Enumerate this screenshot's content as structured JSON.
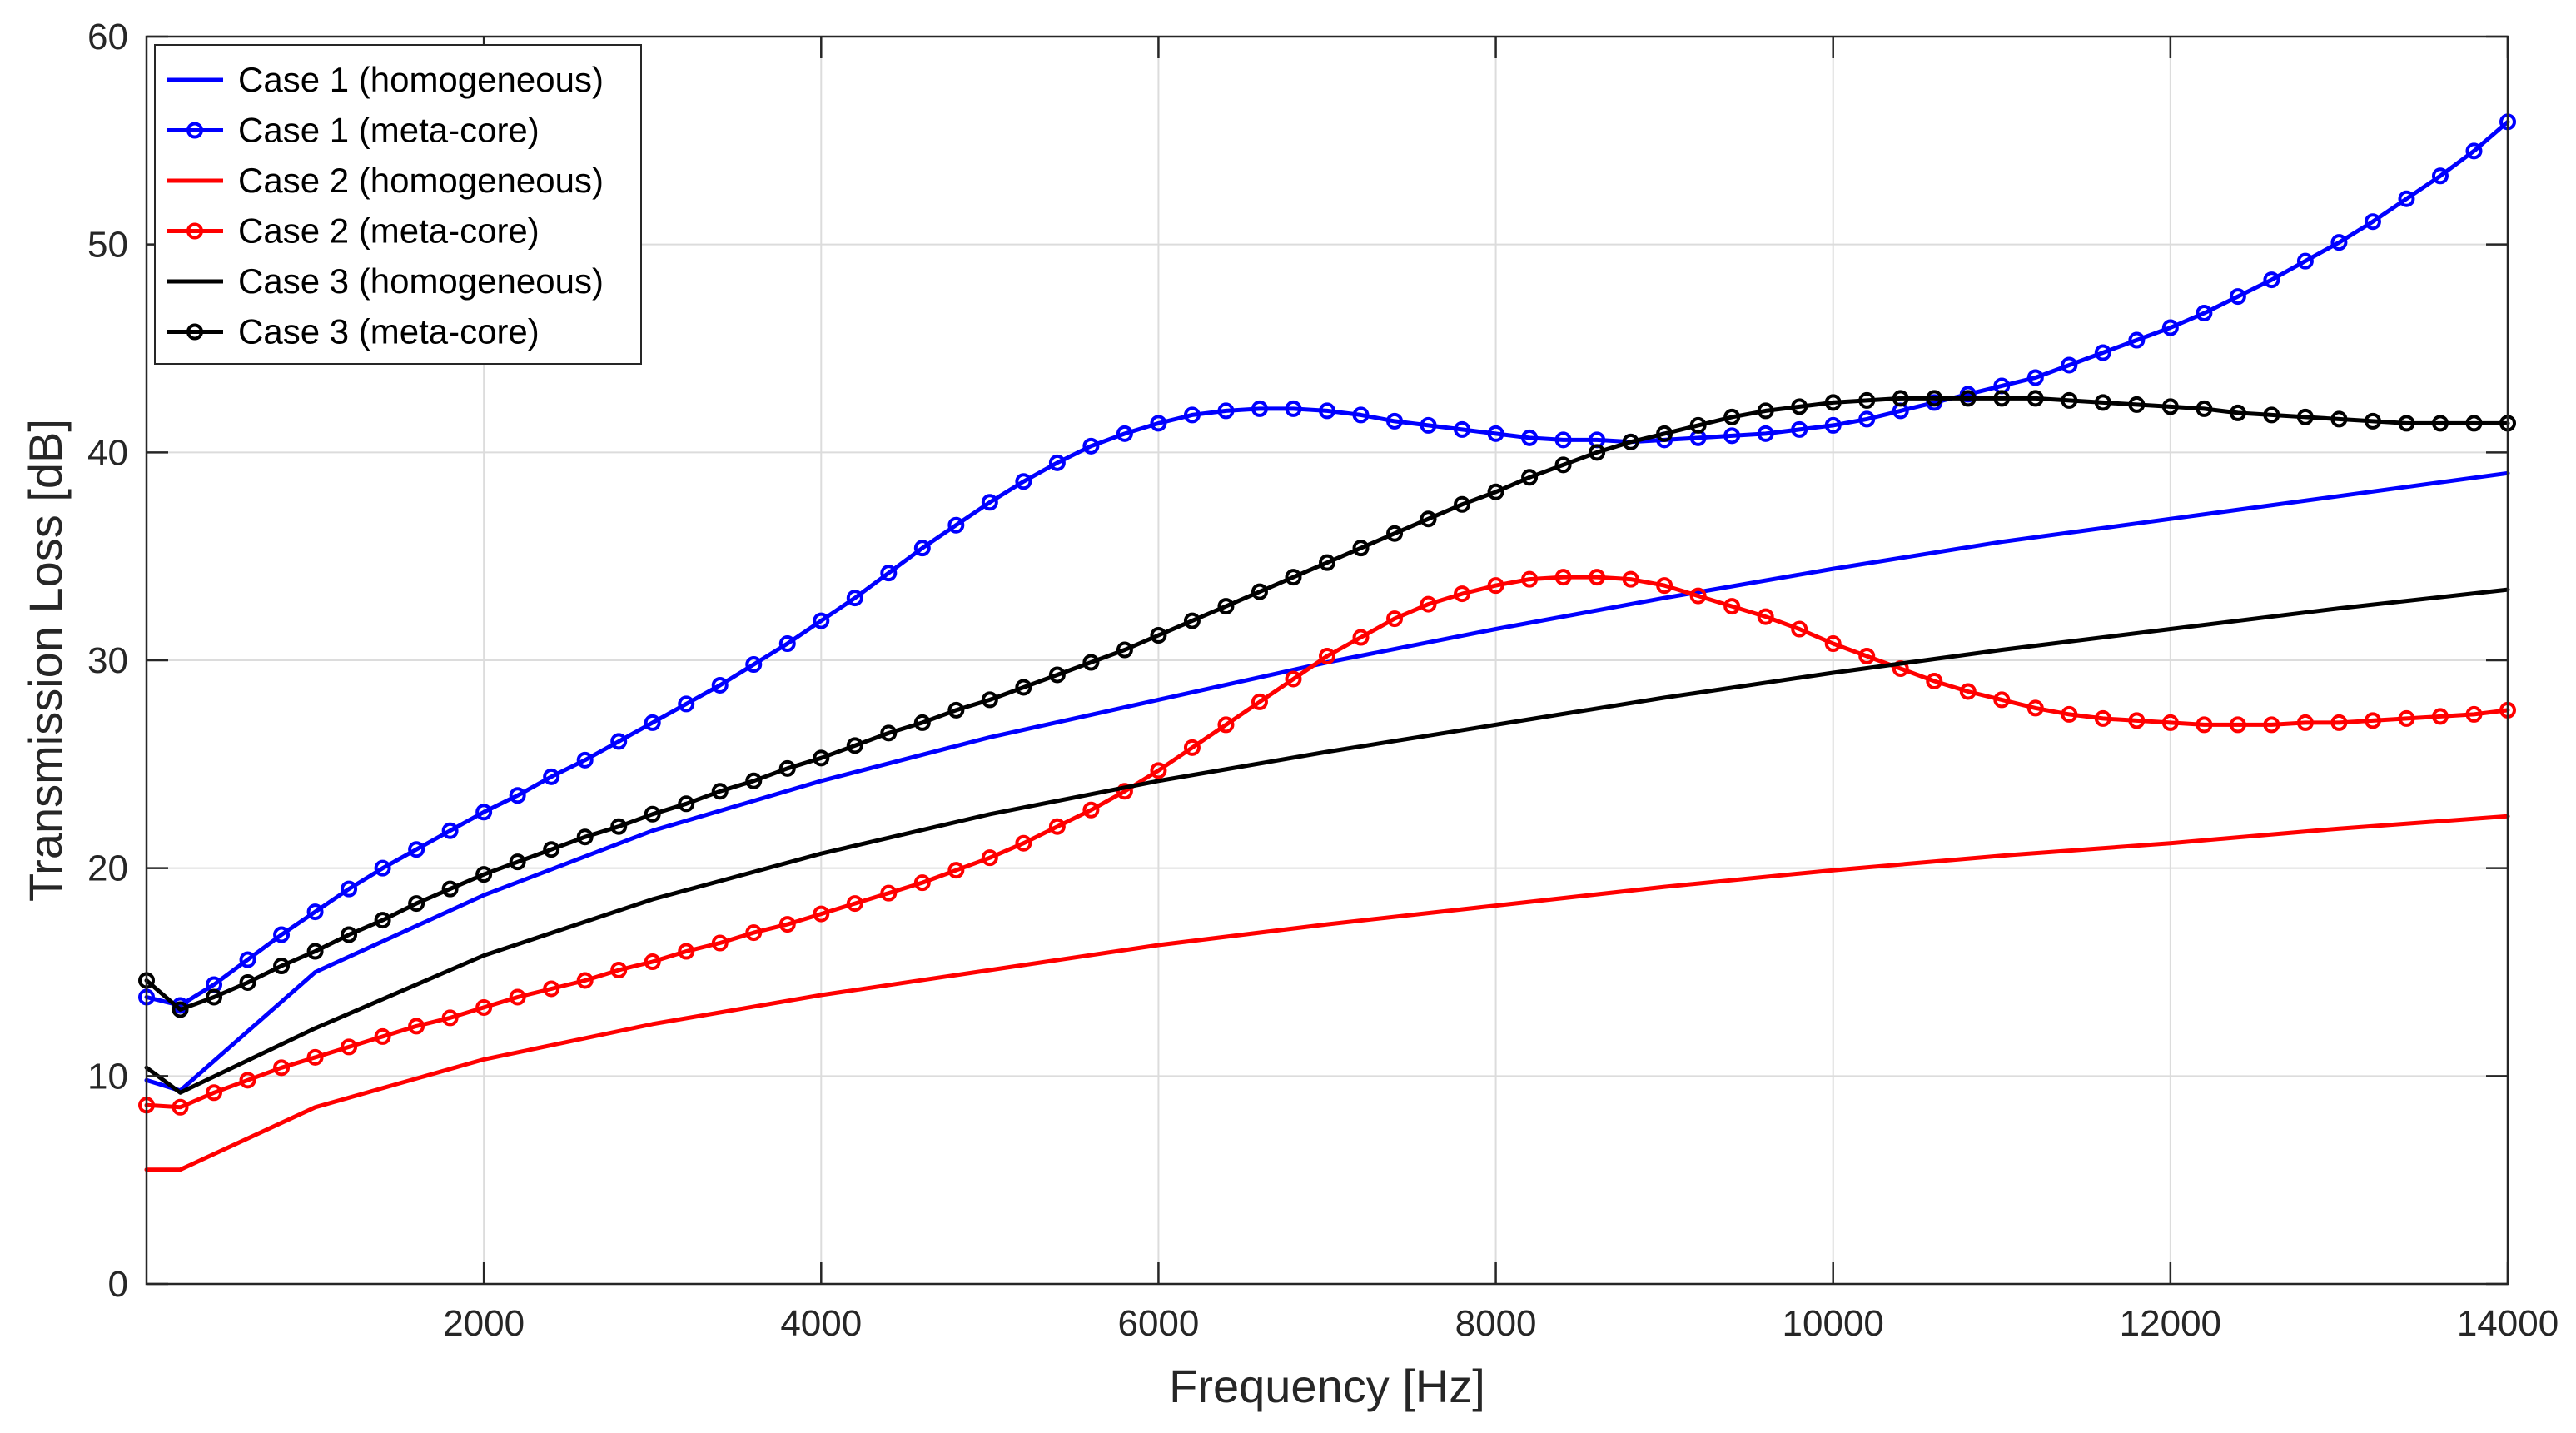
{
  "chart_data": {
    "type": "line",
    "title": "",
    "xlabel": "Frequency [Hz]",
    "ylabel": "Transmission Loss [dB]",
    "xlim": [
      0,
      14000
    ],
    "ylim": [
      0,
      60
    ],
    "xticks": [
      2000,
      4000,
      6000,
      8000,
      10000,
      12000,
      14000
    ],
    "yticks": [
      0,
      10,
      20,
      30,
      40,
      50,
      60
    ],
    "grid": true,
    "legend_position": "top-left",
    "series": [
      {
        "name": "Case 1 (homogeneous)",
        "color": "#0000ff",
        "marker": "none",
        "x": [
          0,
          200,
          1000,
          2000,
          3000,
          4000,
          5000,
          6000,
          7000,
          8000,
          9000,
          10000,
          11000,
          12000,
          13000,
          14000
        ],
        "y": [
          9.8,
          9.3,
          15.0,
          18.7,
          21.8,
          24.2,
          26.3,
          28.1,
          29.9,
          31.5,
          33.0,
          34.4,
          35.7,
          36.8,
          37.9,
          39.0
        ]
      },
      {
        "name": "Case 1 (meta-core)",
        "color": "#0000ff",
        "marker": "circle",
        "x": [
          0,
          200,
          400,
          600,
          800,
          1000,
          1200,
          1400,
          1600,
          1800,
          2000,
          2200,
          2400,
          2600,
          2800,
          3000,
          3200,
          3400,
          3600,
          3800,
          4000,
          4200,
          4400,
          4600,
          4800,
          5000,
          5200,
          5400,
          5600,
          5800,
          6000,
          6200,
          6400,
          6600,
          6800,
          7000,
          7200,
          7400,
          7600,
          7800,
          8000,
          8200,
          8400,
          8600,
          8800,
          9000,
          9200,
          9400,
          9600,
          9800,
          10000,
          10200,
          10400,
          10600,
          10800,
          11000,
          11200,
          11400,
          11600,
          11800,
          12000,
          12200,
          12400,
          12600,
          12800,
          13000,
          13200,
          13400,
          13600,
          13800,
          14000
        ],
        "y": [
          13.8,
          13.4,
          14.4,
          15.6,
          16.8,
          17.9,
          19.0,
          20.0,
          20.9,
          21.8,
          22.7,
          23.5,
          24.4,
          25.2,
          26.1,
          27.0,
          27.9,
          28.8,
          29.8,
          30.8,
          31.9,
          33.0,
          34.2,
          35.4,
          36.5,
          37.6,
          38.6,
          39.5,
          40.3,
          40.9,
          41.4,
          41.8,
          42.0,
          42.1,
          42.1,
          42.0,
          41.8,
          41.5,
          41.3,
          41.1,
          40.9,
          40.7,
          40.6,
          40.6,
          40.5,
          40.6,
          40.7,
          40.8,
          40.9,
          41.1,
          41.3,
          41.6,
          42.0,
          42.4,
          42.8,
          43.2,
          43.6,
          44.2,
          44.8,
          45.4,
          46.0,
          46.7,
          47.5,
          48.3,
          49.2,
          50.1,
          51.1,
          52.2,
          53.3,
          54.5,
          55.9
        ]
      },
      {
        "name": "Case 2 (homogeneous)",
        "color": "#ff0000",
        "marker": "none",
        "x": [
          0,
          200,
          1000,
          2000,
          3000,
          4000,
          5000,
          6000,
          7000,
          8000,
          9000,
          10000,
          11000,
          12000,
          13000,
          14000
        ],
        "y": [
          5.5,
          5.5,
          8.5,
          10.8,
          12.5,
          13.9,
          15.1,
          16.3,
          17.3,
          18.2,
          19.1,
          19.9,
          20.6,
          21.2,
          21.9,
          22.5
        ]
      },
      {
        "name": "Case 2 (meta-core)",
        "color": "#ff0000",
        "marker": "circle",
        "x": [
          0,
          200,
          400,
          600,
          800,
          1000,
          1200,
          1400,
          1600,
          1800,
          2000,
          2200,
          2400,
          2600,
          2800,
          3000,
          3200,
          3400,
          3600,
          3800,
          4000,
          4200,
          4400,
          4600,
          4800,
          5000,
          5200,
          5400,
          5600,
          5800,
          6000,
          6200,
          6400,
          6600,
          6800,
          7000,
          7200,
          7400,
          7600,
          7800,
          8000,
          8200,
          8400,
          8600,
          8800,
          9000,
          9200,
          9400,
          9600,
          9800,
          10000,
          10200,
          10400,
          10600,
          10800,
          11000,
          11200,
          11400,
          11600,
          11800,
          12000,
          12200,
          12400,
          12600,
          12800,
          13000,
          13200,
          13400,
          13600,
          13800,
          14000
        ],
        "y": [
          8.6,
          8.5,
          9.2,
          9.8,
          10.4,
          10.9,
          11.4,
          11.9,
          12.4,
          12.8,
          13.3,
          13.8,
          14.2,
          14.6,
          15.1,
          15.5,
          16.0,
          16.4,
          16.9,
          17.3,
          17.8,
          18.3,
          18.8,
          19.3,
          19.9,
          20.5,
          21.2,
          22.0,
          22.8,
          23.7,
          24.7,
          25.8,
          26.9,
          28.0,
          29.1,
          30.2,
          31.1,
          32.0,
          32.7,
          33.2,
          33.6,
          33.9,
          34.0,
          34.0,
          33.9,
          33.6,
          33.1,
          32.6,
          32.1,
          31.5,
          30.8,
          30.2,
          29.6,
          29.0,
          28.5,
          28.1,
          27.7,
          27.4,
          27.2,
          27.1,
          27.0,
          26.9,
          26.9,
          26.9,
          27.0,
          27.0,
          27.1,
          27.2,
          27.3,
          27.4,
          27.6
        ]
      },
      {
        "name": "Case 3 (homogeneous)",
        "color": "#000000",
        "marker": "none",
        "x": [
          0,
          200,
          1000,
          2000,
          3000,
          4000,
          5000,
          6000,
          7000,
          8000,
          9000,
          10000,
          11000,
          12000,
          13000,
          14000
        ],
        "y": [
          10.4,
          9.2,
          12.3,
          15.8,
          18.5,
          20.7,
          22.6,
          24.2,
          25.6,
          26.9,
          28.2,
          29.4,
          30.5,
          31.5,
          32.5,
          33.4
        ]
      },
      {
        "name": "Case 3 (meta-core)",
        "color": "#000000",
        "marker": "circle",
        "x": [
          0,
          200,
          400,
          600,
          800,
          1000,
          1200,
          1400,
          1600,
          1800,
          2000,
          2200,
          2400,
          2600,
          2800,
          3000,
          3200,
          3400,
          3600,
          3800,
          4000,
          4200,
          4400,
          4600,
          4800,
          5000,
          5200,
          5400,
          5600,
          5800,
          6000,
          6200,
          6400,
          6600,
          6800,
          7000,
          7200,
          7400,
          7600,
          7800,
          8000,
          8200,
          8400,
          8600,
          8800,
          9000,
          9200,
          9400,
          9600,
          9800,
          10000,
          10200,
          10400,
          10600,
          10800,
          11000,
          11200,
          11400,
          11600,
          11800,
          12000,
          12200,
          12400,
          12600,
          12800,
          13000,
          13200,
          13400,
          13600,
          13800,
          14000
        ],
        "y": [
          14.6,
          13.2,
          13.8,
          14.5,
          15.3,
          16.0,
          16.8,
          17.5,
          18.3,
          19.0,
          19.7,
          20.3,
          20.9,
          21.5,
          22.0,
          22.6,
          23.1,
          23.7,
          24.2,
          24.8,
          25.3,
          25.9,
          26.5,
          27.0,
          27.6,
          28.1,
          28.7,
          29.3,
          29.9,
          30.5,
          31.2,
          31.9,
          32.6,
          33.3,
          34.0,
          34.7,
          35.4,
          36.1,
          36.8,
          37.5,
          38.1,
          38.8,
          39.4,
          40.0,
          40.5,
          40.9,
          41.3,
          41.7,
          42.0,
          42.2,
          42.4,
          42.5,
          42.6,
          42.6,
          42.6,
          42.6,
          42.6,
          42.5,
          42.4,
          42.3,
          42.2,
          42.1,
          41.9,
          41.8,
          41.7,
          41.6,
          41.5,
          41.4,
          41.4,
          41.4,
          41.4
        ]
      }
    ]
  }
}
